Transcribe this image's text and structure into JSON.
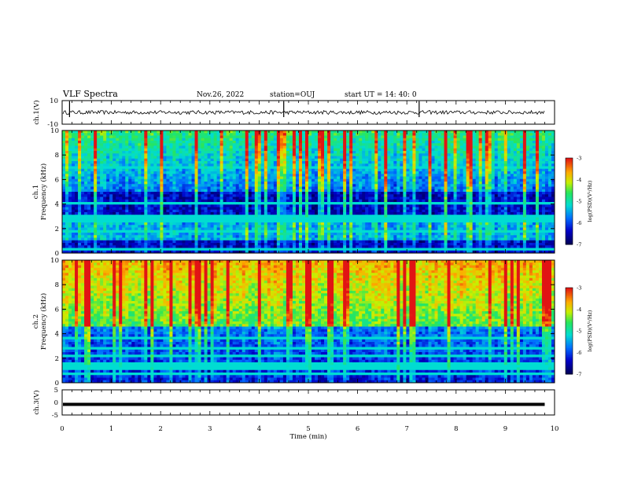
{
  "header": {
    "title": "VLF Spectra",
    "date": "Nov.26, 2022",
    "station": "station=OUJ",
    "start": "start  UT  =   14: 40: 0"
  },
  "chart_data": [
    {
      "type": "line",
      "name": "ch1-waveform",
      "ylabel": "ch.1(V)",
      "ylim": [
        -10,
        10
      ],
      "y_tick_labels": [
        "10",
        "-10"
      ],
      "xlim": [
        0,
        10
      ],
      "baseline_value": 0,
      "spikes_min": [
        0.15,
        4.5,
        7.25
      ]
    },
    {
      "type": "heatmap",
      "name": "ch1-spectrogram",
      "ylabel_line1": "ch.1",
      "ylabel_line2": "Frequency (kHz)",
      "xlim": [
        0,
        10
      ],
      "ylim": [
        0,
        10
      ],
      "y_tick_labels": [
        "0",
        "2",
        "4",
        "6",
        "8",
        "10"
      ],
      "colorbar": {
        "label": "log(PSD)(V²/Hz)",
        "range": [
          -7,
          -3
        ],
        "tick_labels": [
          "-3",
          "-4",
          "-5",
          "-6",
          "-7"
        ]
      },
      "intensity": "low"
    },
    {
      "type": "heatmap",
      "name": "ch2-spectrogram",
      "ylabel_line1": "ch.2",
      "ylabel_line2": "Frequency (kHz)",
      "xlim": [
        0,
        10
      ],
      "ylim": [
        0,
        10
      ],
      "y_tick_labels": [
        "0",
        "2",
        "4",
        "6",
        "8",
        "10"
      ],
      "colorbar": {
        "label": "log(PSD)(V²/Hz)",
        "range": [
          -7,
          -3
        ],
        "tick_labels": [
          "-3",
          "-4",
          "-5",
          "-6",
          "-7"
        ]
      },
      "intensity": "high"
    },
    {
      "type": "line",
      "name": "ch3-waveform",
      "ylabel": "ch.3(V)",
      "ylim": [
        -5,
        5
      ],
      "y_tick_labels": [
        "5",
        "0",
        "-5"
      ],
      "xlim": [
        0,
        10
      ],
      "baseline_value": -0.8
    }
  ],
  "x_axis": {
    "label": "Time (min)",
    "tick_labels": [
      "0",
      "1",
      "2",
      "3",
      "4",
      "5",
      "6",
      "7",
      "8",
      "9",
      "10"
    ]
  }
}
